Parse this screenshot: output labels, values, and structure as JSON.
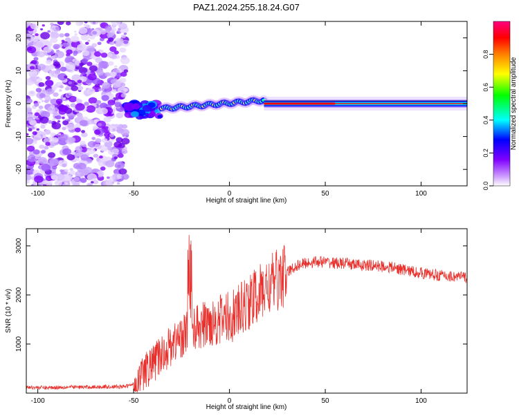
{
  "figure": {
    "title": "PAZ1.2024.255.18.24.G07"
  },
  "chart_data": [
    {
      "type": "heatmap",
      "xlabel": "Height of straight line (km)",
      "ylabel": "Frequency (Hz)",
      "xlim": [
        -106,
        124
      ],
      "ylim": [
        -25,
        25
      ],
      "xticks": [
        -100,
        -50,
        0,
        50,
        100
      ],
      "yticks": [
        -20,
        -10,
        0,
        10,
        20
      ],
      "xtick_labels": [
        "-100",
        "-50",
        "0",
        "50",
        "100"
      ],
      "ytick_labels": [
        "-20",
        "-10",
        "0",
        "10",
        "20"
      ],
      "colorbar": {
        "label": "Normalized spectral amplitude",
        "range": [
          0,
          1
        ],
        "ticks": [
          0.0,
          0.2,
          0.4,
          0.6,
          0.8
        ],
        "tick_labels": [
          "0.0",
          "0.2",
          "0.4",
          "0.6",
          "0.8"
        ],
        "colors": [
          "#ffffff",
          "#cc99ff",
          "#7f00ff",
          "#0000ff",
          "#00ffff",
          "#00ff00",
          "#ffff00",
          "#ff8000",
          "#ff0000",
          "#ff0080"
        ]
      },
      "regions": [
        {
          "x": [
            -106,
            -54
          ],
          "description_value": "scattered noise",
          "y": [
            -25,
            25
          ],
          "amplitude": [
            0.05,
            0.3
          ]
        },
        {
          "x": [
            -54,
            -35
          ],
          "y_center": -2,
          "spread": 4,
          "amplitude": 0.3
        },
        {
          "x": [
            -35,
            18
          ],
          "y_center_start": -1.5,
          "y_center_end": 1,
          "spread": 2,
          "amplitude": 0.4
        },
        {
          "x": [
            18,
            124
          ],
          "y_center": 0,
          "spread": 1.5,
          "amplitude": 1.0
        }
      ],
      "grid": false
    },
    {
      "type": "line",
      "xlabel": "Height of straight line (km)",
      "ylabel": "SNR (10 * v/v)",
      "xlim": [
        -106,
        124
      ],
      "ylim": [
        0,
        3350
      ],
      "xticks": [
        -100,
        -50,
        0,
        50,
        100
      ],
      "yticks": [
        1000,
        2000,
        3000
      ],
      "xtick_labels": [
        "-100",
        "-50",
        "0",
        "50",
        "100"
      ],
      "ytick_labels": [
        "1000",
        "2000",
        "3000"
      ],
      "series": [
        {
          "color": "#e8312d",
          "x": [
            -106,
            -95,
            -85,
            -75,
            -65,
            -55,
            -50,
            -45,
            -40,
            -35,
            -30,
            -25,
            -20,
            -15,
            -10,
            -5,
            0,
            5,
            10,
            15,
            20,
            25,
            30,
            35,
            40,
            45,
            50,
            55,
            60,
            65,
            70,
            75,
            80,
            85,
            90,
            95,
            100,
            105,
            110,
            115,
            120,
            124
          ],
          "y": [
            120,
            110,
            125,
            120,
            130,
            130,
            180,
            400,
            600,
            800,
            1000,
            1150,
            1300,
            1350,
            1450,
            1500,
            1550,
            1650,
            1850,
            2000,
            2150,
            2300,
            2450,
            2600,
            2650,
            2680,
            2670,
            2650,
            2640,
            2620,
            2600,
            2600,
            2580,
            2560,
            2520,
            2480,
            2450,
            2420,
            2400,
            2380,
            2370,
            2360
          ]
        }
      ],
      "grid": false
    }
  ]
}
